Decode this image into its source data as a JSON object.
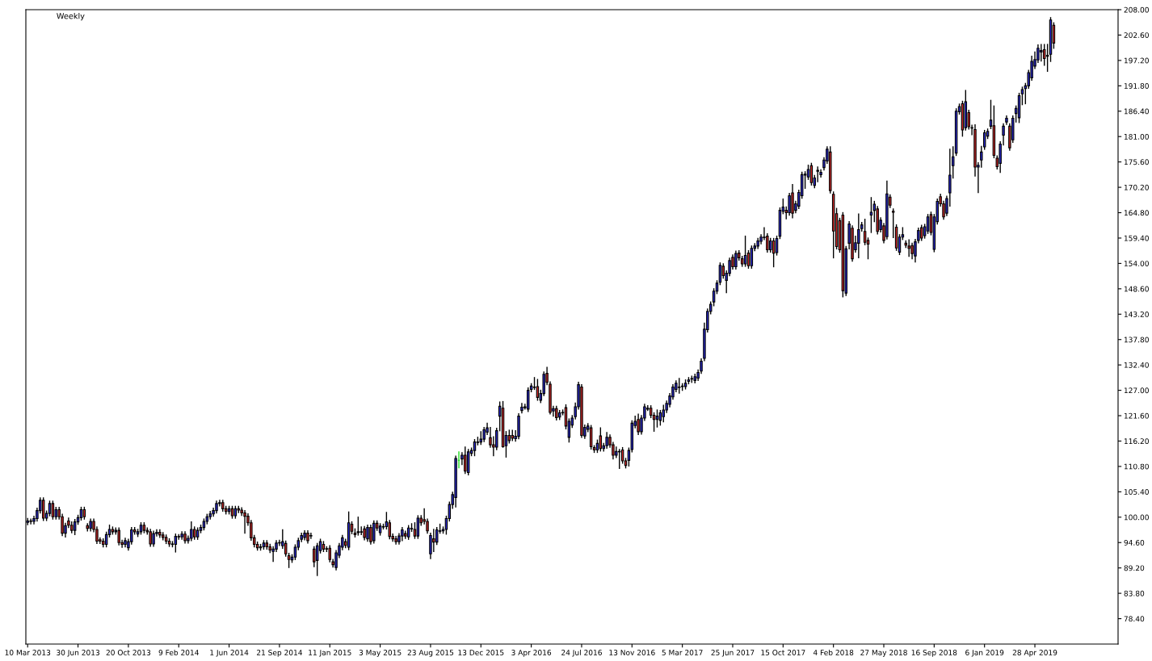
{
  "chart_data": {
    "type": "candlestick",
    "title": "Weekly",
    "x": [
      "2013-03-10",
      "2013-03-17",
      "2013-03-24",
      "2013-03-31",
      "2013-04-07",
      "2013-04-14",
      "2013-04-21",
      "2013-04-28",
      "2013-05-05",
      "2013-05-12",
      "2013-05-19",
      "2013-05-26",
      "2013-06-02",
      "2013-06-09",
      "2013-06-16",
      "2013-06-23",
      "2013-06-30",
      "2013-07-07",
      "2013-07-14",
      "2013-07-21",
      "2013-07-28",
      "2013-08-04",
      "2013-08-11",
      "2013-08-18",
      "2013-08-25",
      "2013-09-01",
      "2013-09-08",
      "2013-09-15",
      "2013-09-22",
      "2013-09-29",
      "2013-10-06",
      "2013-10-13",
      "2013-10-20",
      "2013-10-27",
      "2013-11-03",
      "2013-11-10",
      "2013-11-17",
      "2013-11-24",
      "2013-12-01",
      "2013-12-08",
      "2013-12-15",
      "2013-12-22",
      "2013-12-29",
      "2014-01-05",
      "2014-01-12",
      "2014-01-19",
      "2014-01-26",
      "2014-02-02",
      "2014-02-09",
      "2014-02-16",
      "2014-02-23",
      "2014-03-02",
      "2014-03-09",
      "2014-03-16",
      "2014-03-23",
      "2014-03-30",
      "2014-04-06",
      "2014-04-13",
      "2014-04-20",
      "2014-04-27",
      "2014-05-04",
      "2014-05-11",
      "2014-05-18",
      "2014-05-25",
      "2014-06-01",
      "2014-06-08",
      "2014-06-15",
      "2014-06-22",
      "2014-06-29",
      "2014-07-06",
      "2014-07-13",
      "2014-07-20",
      "2014-07-27",
      "2014-08-03",
      "2014-08-10",
      "2014-08-17",
      "2014-08-24",
      "2014-08-31",
      "2014-09-07",
      "2014-09-14",
      "2014-09-21",
      "2014-09-28",
      "2014-10-05",
      "2014-10-12",
      "2014-10-19",
      "2014-10-26",
      "2014-11-02",
      "2014-11-09",
      "2014-11-16",
      "2014-11-23",
      "2014-11-30",
      "2014-12-07",
      "2014-12-14",
      "2014-12-21",
      "2014-12-28",
      "2015-01-04",
      "2015-01-11",
      "2015-01-18",
      "2015-01-25",
      "2015-02-01",
      "2015-02-08",
      "2015-02-15",
      "2015-02-22",
      "2015-03-01",
      "2015-03-08",
      "2015-03-15",
      "2015-03-22",
      "2015-03-29",
      "2015-04-05",
      "2015-04-12",
      "2015-04-19",
      "2015-04-26",
      "2015-05-03",
      "2015-05-10",
      "2015-05-17",
      "2015-05-24",
      "2015-05-31",
      "2015-06-07",
      "2015-06-14",
      "2015-06-21",
      "2015-06-28",
      "2015-07-05",
      "2015-07-12",
      "2015-07-19",
      "2015-07-26",
      "2015-08-02",
      "2015-08-09",
      "2015-08-16",
      "2015-08-23",
      "2015-08-30",
      "2015-09-06",
      "2015-09-13",
      "2015-09-20",
      "2015-09-27",
      "2015-10-04",
      "2015-10-11",
      "2015-10-18",
      "2015-10-25",
      "2015-11-01",
      "2015-11-08",
      "2015-11-15",
      "2015-11-22",
      "2015-11-29",
      "2015-12-06",
      "2015-12-13",
      "2015-12-20",
      "2015-12-27",
      "2016-01-03",
      "2016-01-10",
      "2016-01-17",
      "2016-01-24",
      "2016-01-31",
      "2016-02-07",
      "2016-02-14",
      "2016-02-21",
      "2016-02-28",
      "2016-03-06",
      "2016-03-13",
      "2016-03-20",
      "2016-03-27",
      "2016-04-03",
      "2016-04-10",
      "2016-04-17",
      "2016-04-24",
      "2016-05-01",
      "2016-05-08",
      "2016-05-15",
      "2016-05-22",
      "2016-05-29",
      "2016-06-05",
      "2016-06-12",
      "2016-06-19",
      "2016-06-26",
      "2016-07-03",
      "2016-07-10",
      "2016-07-17",
      "2016-07-24",
      "2016-07-31",
      "2016-08-07",
      "2016-08-14",
      "2016-08-21",
      "2016-08-28",
      "2016-09-04",
      "2016-09-11",
      "2016-09-18",
      "2016-09-25",
      "2016-10-02",
      "2016-10-09",
      "2016-10-16",
      "2016-10-23",
      "2016-10-30",
      "2016-11-06",
      "2016-11-13",
      "2016-11-20",
      "2016-11-27",
      "2016-12-04",
      "2016-12-11",
      "2016-12-18",
      "2016-12-25",
      "2017-01-01",
      "2017-01-08",
      "2017-01-15",
      "2017-01-22",
      "2017-01-29",
      "2017-02-05",
      "2017-02-12",
      "2017-02-19",
      "2017-02-26",
      "2017-03-05",
      "2017-03-12",
      "2017-03-19",
      "2017-03-26",
      "2017-04-02",
      "2017-04-09",
      "2017-04-16",
      "2017-04-23",
      "2017-04-30",
      "2017-05-07",
      "2017-05-14",
      "2017-05-21",
      "2017-05-28",
      "2017-06-04",
      "2017-06-11",
      "2017-06-18",
      "2017-06-25",
      "2017-07-02",
      "2017-07-09",
      "2017-07-16",
      "2017-07-23",
      "2017-07-30",
      "2017-08-06",
      "2017-08-13",
      "2017-08-20",
      "2017-08-27",
      "2017-09-03",
      "2017-09-10",
      "2017-09-17",
      "2017-09-24",
      "2017-10-01",
      "2017-10-08",
      "2017-10-15",
      "2017-10-22",
      "2017-10-29",
      "2017-11-05",
      "2017-11-12",
      "2017-11-19",
      "2017-11-26",
      "2017-12-03",
      "2017-12-10",
      "2017-12-17",
      "2017-12-24",
      "2017-12-31",
      "2018-01-07",
      "2018-01-14",
      "2018-01-21",
      "2018-01-28",
      "2018-02-04",
      "2018-02-11",
      "2018-02-18",
      "2018-02-25",
      "2018-03-04",
      "2018-03-11",
      "2018-03-18",
      "2018-03-25",
      "2018-04-01",
      "2018-04-08",
      "2018-04-15",
      "2018-04-22",
      "2018-04-29",
      "2018-05-06",
      "2018-05-13",
      "2018-05-20",
      "2018-05-27",
      "2018-06-03",
      "2018-06-10",
      "2018-06-17",
      "2018-06-24",
      "2018-07-01",
      "2018-07-08",
      "2018-07-15",
      "2018-07-22",
      "2018-07-29",
      "2018-08-05",
      "2018-08-12",
      "2018-08-19",
      "2018-08-26",
      "2018-09-02",
      "2018-09-09",
      "2018-09-16",
      "2018-09-23",
      "2018-09-30",
      "2018-10-07",
      "2018-10-14",
      "2018-10-21",
      "2018-10-28",
      "2018-11-04",
      "2018-11-11",
      "2018-11-18",
      "2018-11-25",
      "2018-12-02",
      "2018-12-09",
      "2018-12-16",
      "2018-12-23",
      "2018-12-30",
      "2019-01-06",
      "2019-01-13",
      "2019-01-20",
      "2019-01-27",
      "2019-02-03",
      "2019-02-10",
      "2019-02-17",
      "2019-02-24",
      "2019-03-03",
      "2019-03-10",
      "2019-03-17",
      "2019-03-24",
      "2019-03-31",
      "2019-04-07",
      "2019-04-14",
      "2019-04-21",
      "2019-04-28",
      "2019-05-05",
      "2019-05-12",
      "2019-05-19",
      "2019-05-26",
      "2019-06-02",
      "2019-06-09"
    ],
    "ohlc": [
      [
        98.9,
        99.7,
        98.4,
        99.2
      ],
      [
        99.2,
        99.6,
        98.6,
        99.1
      ],
      [
        99.1,
        100.2,
        98.6,
        99.7
      ],
      [
        99.7,
        101.9,
        99.2,
        101.4
      ],
      [
        101.4,
        104.1,
        100.9,
        103.6
      ],
      [
        103.6,
        104.1,
        99.3,
        99.8
      ],
      [
        99.8,
        101.3,
        99.3,
        100.8
      ],
      [
        100.8,
        103.4,
        100.3,
        102.9
      ],
      [
        102.9,
        103.4,
        99.6,
        100.1
      ],
      [
        100.1,
        102.1,
        99.6,
        101.6
      ],
      [
        101.6,
        102.1,
        99.6,
        100.1
      ],
      [
        100.1,
        100.6,
        96.1,
        96.6
      ],
      [
        96.6,
        98.7,
        95.8,
        98.2
      ],
      [
        99.2,
        99.8,
        97.8,
        98.3
      ],
      [
        98.3,
        99.0,
        96.7,
        97.2
      ],
      [
        97.2,
        99.5,
        96.3,
        99.0
      ],
      [
        99.0,
        100.4,
        98.5,
        99.9
      ],
      [
        99.9,
        102.1,
        99.4,
        101.6
      ],
      [
        101.6,
        102.1,
        99.6,
        100.1
      ],
      [
        98.2,
        98.6,
        97.1,
        97.6
      ],
      [
        97.6,
        99.6,
        97.1,
        99.1
      ],
      [
        99.1,
        99.6,
        96.9,
        97.4
      ],
      [
        97.4,
        97.9,
        94.4,
        94.9
      ],
      [
        95.2,
        95.6,
        94.4,
        94.9
      ],
      [
        94.9,
        95.4,
        93.7,
        94.2
      ],
      [
        94.2,
        96.8,
        93.7,
        96.3
      ],
      [
        96.3,
        98.3,
        95.8,
        97.4
      ],
      [
        97.4,
        97.9,
        96.4,
        96.9
      ],
      [
        96.9,
        97.7,
        96.4,
        97.2
      ],
      [
        97.2,
        97.7,
        94.1,
        94.6
      ],
      [
        94.6,
        95.1,
        93.6,
        94.2
      ],
      [
        94.2,
        95.5,
        93.7,
        95.0
      ],
      [
        93.5,
        95.3,
        93.0,
        94.8
      ],
      [
        94.8,
        97.8,
        94.3,
        97.3
      ],
      [
        97.3,
        97.8,
        96.4,
        96.9
      ],
      [
        96.4,
        97.4,
        95.9,
        96.9
      ],
      [
        96.9,
        98.8,
        96.4,
        98.3
      ],
      [
        98.3,
        98.8,
        96.7,
        97.2
      ],
      [
        97.2,
        97.7,
        96.4,
        96.9
      ],
      [
        96.9,
        97.4,
        93.8,
        94.3
      ],
      [
        94.3,
        97.0,
        93.8,
        96.5
      ],
      [
        96.5,
        97.3,
        96.0,
        96.8
      ],
      [
        96.8,
        97.3,
        95.7,
        96.2
      ],
      [
        96.2,
        96.7,
        95.2,
        95.7
      ],
      [
        95.7,
        96.2,
        94.4,
        94.9
      ],
      [
        94.9,
        95.4,
        93.8,
        94.3
      ],
      [
        94.3,
        94.8,
        93.7,
        94.2
      ],
      [
        94.2,
        96.4,
        92.6,
        95.9
      ],
      [
        95.9,
        96.3,
        95.3,
        95.8
      ],
      [
        95.8,
        96.9,
        95.3,
        96.4
      ],
      [
        96.4,
        96.9,
        94.5,
        95.0
      ],
      [
        95.0,
        96.0,
        94.5,
        95.5
      ],
      [
        95.5,
        99.0,
        95.0,
        97.4
      ],
      [
        97.4,
        97.9,
        95.3,
        95.8
      ],
      [
        95.8,
        97.7,
        95.3,
        97.2
      ],
      [
        97.2,
        98.3,
        96.7,
        97.8
      ],
      [
        97.8,
        99.6,
        97.3,
        99.1
      ],
      [
        99.1,
        100.6,
        98.6,
        100.1
      ],
      [
        100.1,
        101.2,
        99.6,
        100.7
      ],
      [
        100.7,
        101.9,
        100.2,
        101.4
      ],
      [
        101.4,
        103.4,
        100.9,
        102.9
      ],
      [
        102.9,
        103.6,
        102.4,
        103.1
      ],
      [
        103.1,
        103.6,
        101.3,
        101.8
      ],
      [
        101.8,
        102.3,
        100.7,
        101.2
      ],
      [
        101.2,
        102.3,
        100.7,
        101.8
      ],
      [
        101.8,
        102.3,
        99.8,
        100.3
      ],
      [
        100.3,
        102.3,
        99.8,
        101.8
      ],
      [
        101.8,
        102.3,
        101.0,
        101.5
      ],
      [
        101.5,
        102.0,
        100.4,
        100.9
      ],
      [
        100.9,
        101.4,
        96.6,
        100.2
      ],
      [
        100.2,
        100.7,
        98.3,
        98.8
      ],
      [
        98.8,
        99.3,
        95.1,
        95.6
      ],
      [
        95.6,
        96.1,
        93.7,
        94.2
      ],
      [
        94.2,
        94.7,
        93.0,
        93.5
      ],
      [
        93.5,
        94.2,
        93.0,
        93.7
      ],
      [
        93.7,
        95.0,
        93.2,
        94.5
      ],
      [
        94.5,
        95.0,
        93.2,
        93.7
      ],
      [
        93.7,
        94.2,
        92.5,
        93.0
      ],
      [
        92.7,
        93.7,
        90.6,
        93.2
      ],
      [
        93.2,
        95.0,
        92.7,
        94.5
      ],
      [
        94.5,
        95.1,
        94.0,
        94.6
      ],
      [
        93.9,
        97.3,
        93.4,
        94.8
      ],
      [
        94.4,
        94.9,
        91.7,
        92.2
      ],
      [
        91.8,
        92.3,
        89.3,
        91.0
      ],
      [
        90.9,
        92.0,
        90.4,
        91.5
      ],
      [
        91.5,
        94.1,
        91.0,
        93.6
      ],
      [
        93.6,
        95.5,
        93.1,
        95.0
      ],
      [
        95.3,
        96.6,
        94.8,
        96.1
      ],
      [
        95.7,
        97.1,
        95.2,
        96.6
      ],
      [
        96.6,
        97.1,
        94.5,
        95.0
      ],
      [
        96.0,
        96.6,
        95.5,
        96.1
      ],
      [
        93.2,
        93.7,
        89.5,
        90.5
      ],
      [
        90.8,
        94.4,
        87.6,
        93.9
      ],
      [
        92.9,
        95.3,
        92.4,
        94.8
      ],
      [
        94.2,
        94.8,
        92.7,
        93.2
      ],
      [
        93.3,
        93.7,
        92.7,
        93.2
      ],
      [
        93.4,
        93.9,
        90.5,
        91.0
      ],
      [
        90.5,
        91.0,
        89.4,
        89.9
      ],
      [
        89.3,
        92.9,
        88.8,
        92.4
      ],
      [
        91.9,
        94.4,
        91.4,
        93.9
      ],
      [
        93.6,
        96.1,
        93.1,
        95.6
      ],
      [
        94.8,
        95.3,
        93.5,
        94.0
      ],
      [
        93.6,
        101.1,
        93.1,
        98.8
      ],
      [
        98.5,
        99.0,
        96.5,
        97.0
      ],
      [
        96.6,
        97.5,
        95.8,
        96.3
      ],
      [
        96.7,
        100.0,
        96.2,
        96.9
      ],
      [
        96.8,
        97.9,
        96.3,
        96.9
      ],
      [
        97.5,
        98.0,
        95.2,
        95.7
      ],
      [
        95.4,
        98.3,
        94.9,
        97.8
      ],
      [
        97.8,
        98.3,
        94.3,
        94.8
      ],
      [
        95.0,
        99.2,
        94.5,
        98.7
      ],
      [
        98.7,
        99.2,
        97.2,
        97.7
      ],
      [
        96.7,
        98.6,
        96.2,
        98.1
      ],
      [
        97.9,
        98.5,
        97.5,
        98.0
      ],
      [
        98.0,
        101.0,
        97.5,
        99.0
      ],
      [
        98.8,
        99.3,
        95.4,
        95.9
      ],
      [
        95.9,
        96.4,
        94.9,
        95.4
      ],
      [
        95.4,
        95.9,
        94.3,
        94.8
      ],
      [
        94.8,
        96.5,
        94.3,
        96.0
      ],
      [
        96.0,
        97.8,
        95.0,
        97.3
      ],
      [
        96.5,
        97.0,
        95.5,
        96.0
      ],
      [
        95.8,
        98.2,
        95.3,
        97.7
      ],
      [
        97.5,
        98.6,
        97.0,
        97.6
      ],
      [
        97.4,
        98.8,
        95.5,
        96.0
      ],
      [
        96.0,
        100.3,
        95.5,
        99.8
      ],
      [
        99.8,
        100.3,
        98.3,
        98.8
      ],
      [
        99.5,
        101.8,
        98.6,
        99.1
      ],
      [
        99.1,
        99.6,
        96.6,
        97.1
      ],
      [
        92.2,
        96.6,
        91.2,
        96.1
      ],
      [
        95.4,
        97.4,
        92.7,
        94.7
      ],
      [
        94.7,
        97.8,
        94.2,
        97.3
      ],
      [
        97.0,
        98.5,
        96.6,
        97.1
      ],
      [
        97.1,
        97.9,
        96.6,
        97.4
      ],
      [
        97.4,
        100.2,
        96.4,
        99.7
      ],
      [
        99.7,
        103.2,
        99.2,
        102.7
      ],
      [
        102.7,
        105.3,
        101.9,
        104.8
      ],
      [
        104.2,
        113.0,
        102.2,
        112.5
      ],
      [
        112.1,
        113.9,
        110.5,
        112.1
      ],
      [
        112.4,
        113.7,
        111.2,
        113.2
      ],
      [
        113.2,
        114.9,
        109.3,
        109.8
      ],
      [
        109.5,
        114.4,
        109.0,
        113.9
      ],
      [
        113.6,
        114.7,
        113.1,
        114.2
      ],
      [
        114.2,
        116.5,
        113.1,
        116.0
      ],
      [
        115.9,
        117.0,
        115.4,
        116.0
      ],
      [
        116.0,
        118.2,
        115.5,
        116.6
      ],
      [
        116.6,
        119.1,
        116.1,
        118.6
      ],
      [
        118.1,
        120.0,
        117.6,
        119.0
      ],
      [
        116.9,
        119.1,
        114.9,
        115.4
      ],
      [
        115.4,
        117.1,
        113.1,
        114.9
      ],
      [
        114.9,
        118.9,
        114.4,
        118.4
      ],
      [
        121.5,
        124.5,
        118.4,
        123.6
      ],
      [
        123.2,
        124.6,
        114.9,
        115.0
      ],
      [
        115.2,
        118.2,
        112.8,
        117.4
      ],
      [
        117.4,
        118.5,
        115.8,
        116.3
      ],
      [
        117.4,
        118.5,
        116.3,
        116.8
      ],
      [
        116.7,
        118.4,
        116.2,
        117.2
      ],
      [
        117.2,
        122.0,
        116.7,
        121.5
      ],
      [
        122.7,
        124.2,
        122.2,
        123.4
      ],
      [
        123.3,
        124.0,
        123.0,
        123.5
      ],
      [
        123.0,
        127.5,
        122.5,
        127.0
      ],
      [
        127.2,
        128.4,
        126.7,
        127.9
      ],
      [
        127.6,
        129.7,
        127.2,
        127.7
      ],
      [
        127.8,
        129.3,
        124.9,
        125.5
      ],
      [
        124.9,
        127.0,
        124.4,
        126.3
      ],
      [
        126.3,
        130.9,
        125.9,
        130.4
      ],
      [
        130.6,
        131.9,
        128.2,
        128.7
      ],
      [
        128.3,
        128.8,
        122.0,
        122.3
      ],
      [
        122.6,
        123.6,
        121.5,
        123.1
      ],
      [
        123.1,
        123.6,
        120.7,
        121.2
      ],
      [
        121.3,
        122.7,
        120.8,
        122.2
      ],
      [
        122.2,
        122.8,
        121.8,
        122.3
      ],
      [
        123.3,
        123.9,
        118.8,
        119.4
      ],
      [
        117.0,
        120.9,
        116.0,
        120.4
      ],
      [
        119.6,
        121.6,
        119.1,
        121.1
      ],
      [
        121.4,
        124.3,
        120.9,
        123.5
      ],
      [
        123.5,
        128.7,
        123.0,
        128.2
      ],
      [
        127.7,
        128.2,
        117.0,
        117.4
      ],
      [
        117.3,
        119.6,
        116.8,
        119.1
      ],
      [
        118.7,
        119.9,
        118.2,
        119.4
      ],
      [
        119.0,
        119.5,
        114.5,
        115.0
      ],
      [
        114.8,
        115.2,
        113.8,
        114.3
      ],
      [
        114.3,
        116.4,
        113.8,
        115.7
      ],
      [
        117.3,
        119.0,
        114.1,
        114.6
      ],
      [
        114.6,
        115.7,
        114.1,
        115.2
      ],
      [
        115.2,
        118.0,
        114.7,
        117.0
      ],
      [
        117.0,
        117.5,
        114.9,
        115.4
      ],
      [
        115.4,
        115.9,
        112.4,
        113.2
      ],
      [
        113.2,
        114.9,
        112.7,
        114.0
      ],
      [
        114.0,
        114.4,
        110.4,
        113.9
      ],
      [
        114.3,
        114.8,
        111.5,
        112.0
      ],
      [
        112.0,
        112.5,
        110.5,
        111.0
      ],
      [
        112.1,
        114.7,
        110.9,
        114.2
      ],
      [
        114.4,
        120.5,
        113.9,
        120.0
      ],
      [
        119.5,
        121.5,
        119.0,
        120.4
      ],
      [
        120.8,
        121.9,
        117.6,
        118.2
      ],
      [
        118.2,
        121.6,
        117.7,
        121.1
      ],
      [
        121.1,
        124.0,
        120.6,
        123.5
      ],
      [
        123.0,
        123.7,
        122.7,
        123.2
      ],
      [
        123.2,
        123.7,
        121.2,
        121.7
      ],
      [
        121.7,
        122.2,
        118.3,
        120.8
      ],
      [
        120.8,
        122.8,
        119.2,
        121.5
      ],
      [
        120.6,
        122.7,
        119.6,
        122.2
      ],
      [
        121.4,
        123.8,
        120.3,
        122.8
      ],
      [
        122.8,
        124.7,
        122.3,
        124.2
      ],
      [
        124.0,
        126.3,
        123.5,
        125.8
      ],
      [
        125.6,
        128.2,
        125.1,
        127.7
      ],
      [
        127.2,
        129.0,
        126.7,
        128.5
      ],
      [
        127.7,
        129.5,
        126.4,
        127.6
      ],
      [
        127.8,
        128.4,
        127.0,
        127.9
      ],
      [
        127.8,
        129.2,
        127.3,
        128.5
      ],
      [
        128.9,
        129.7,
        128.4,
        129.2
      ],
      [
        129.4,
        130.0,
        128.7,
        129.5
      ],
      [
        129.1,
        130.4,
        128.6,
        129.9
      ],
      [
        129.6,
        131.3,
        129.1,
        130.8
      ],
      [
        131.1,
        133.7,
        130.6,
        133.2
      ],
      [
        133.8,
        141.3,
        133.3,
        140.0
      ],
      [
        139.9,
        144.3,
        139.4,
        143.8
      ],
      [
        143.8,
        145.8,
        143.3,
        145.3
      ],
      [
        145.8,
        148.6,
        145.0,
        148.1
      ],
      [
        148.1,
        150.3,
        147.6,
        149.8
      ],
      [
        150.0,
        154.1,
        149.5,
        153.6
      ],
      [
        153.4,
        153.9,
        150.9,
        151.4
      ],
      [
        150.4,
        152.4,
        147.8,
        151.9
      ],
      [
        151.9,
        155.1,
        151.4,
        154.6
      ],
      [
        155.3,
        155.8,
        152.8,
        153.3
      ],
      [
        153.3,
        156.6,
        152.8,
        156.1
      ],
      [
        156.2,
        156.7,
        154.7,
        155.2
      ],
      [
        155.0,
        155.5,
        153.4,
        153.9
      ],
      [
        153.9,
        159.8,
        153.4,
        155.7
      ],
      [
        156.2,
        156.7,
        153.0,
        153.5
      ],
      [
        153.5,
        157.7,
        153.0,
        157.2
      ],
      [
        157.2,
        158.2,
        156.7,
        157.7
      ],
      [
        157.7,
        159.3,
        157.2,
        158.8
      ],
      [
        158.7,
        160.1,
        158.2,
        159.6
      ],
      [
        159.5,
        161.6,
        159.1,
        159.6
      ],
      [
        159.8,
        160.3,
        156.4,
        156.9
      ],
      [
        156.9,
        159.3,
        156.4,
        158.8
      ],
      [
        158.8,
        159.3,
        153.3,
        156.2
      ],
      [
        156.3,
        159.8,
        155.8,
        159.3
      ],
      [
        159.8,
        165.8,
        159.3,
        165.3
      ],
      [
        165.1,
        167.7,
        164.6,
        166.0
      ],
      [
        165.3,
        166.0,
        163.5,
        164.8
      ],
      [
        164.8,
        168.9,
        164.3,
        168.4
      ],
      [
        169.0,
        170.8,
        163.7,
        164.7
      ],
      [
        165.3,
        167.2,
        164.8,
        166.7
      ],
      [
        166.2,
        169.6,
        165.7,
        169.1
      ],
      [
        168.4,
        173.4,
        167.9,
        172.9
      ],
      [
        172.8,
        173.5,
        170.0,
        173.0
      ],
      [
        172.4,
        174.9,
        171.9,
        174.0
      ],
      [
        174.8,
        175.3,
        170.7,
        171.2
      ],
      [
        170.6,
        172.7,
        170.1,
        172.2
      ],
      [
        173.6,
        174.5,
        171.4,
        173.8
      ],
      [
        172.9,
        173.9,
        172.4,
        173.4
      ],
      [
        174.4,
        176.5,
        173.9,
        176.0
      ],
      [
        175.8,
        178.8,
        175.3,
        178.3
      ],
      [
        177.7,
        178.8,
        169.0,
        169.5
      ],
      [
        168.7,
        169.2,
        155.2,
        160.9
      ],
      [
        164.6,
        165.7,
        157.1,
        157.6
      ],
      [
        163.1,
        163.6,
        156.4,
        156.9
      ],
      [
        164.3,
        164.8,
        146.9,
        148.2
      ],
      [
        147.7,
        157.6,
        147.2,
        157.1
      ],
      [
        158.3,
        162.9,
        157.1,
        162.4
      ],
      [
        161.5,
        162.0,
        154.5,
        155.0
      ],
      [
        156.9,
        159.8,
        156.4,
        158.4
      ],
      [
        158.3,
        164.5,
        155.2,
        161.2
      ],
      [
        161.4,
        162.7,
        160.9,
        162.2
      ],
      [
        160.8,
        163.4,
        158.0,
        158.5
      ],
      [
        158.9,
        159.4,
        155.0,
        158.1
      ],
      [
        164.3,
        168.0,
        160.6,
        164.9
      ],
      [
        165.3,
        167.2,
        162.9,
        166.6
      ],
      [
        165.6,
        166.1,
        160.3,
        160.8
      ],
      [
        161.2,
        163.7,
        160.7,
        163.2
      ],
      [
        162.0,
        162.5,
        158.4,
        158.9
      ],
      [
        159.7,
        171.5,
        159.2,
        168.8
      ],
      [
        168.1,
        168.6,
        165.9,
        166.4
      ],
      [
        165.1,
        165.6,
        159.5,
        164.9
      ],
      [
        161.7,
        162.2,
        156.8,
        157.3
      ],
      [
        156.4,
        160.1,
        155.9,
        159.6
      ],
      [
        159.6,
        161.6,
        159.1,
        160.1
      ],
      [
        158.3,
        158.8,
        157.4,
        157.9
      ],
      [
        157.7,
        159.0,
        155.5,
        157.2
      ],
      [
        157.8,
        158.3,
        155.0,
        156.1
      ],
      [
        155.6,
        159.1,
        154.3,
        158.6
      ],
      [
        158.9,
        161.5,
        158.4,
        161.0
      ],
      [
        161.6,
        162.1,
        158.9,
        159.4
      ],
      [
        159.9,
        162.3,
        159.4,
        161.8
      ],
      [
        160.9,
        164.4,
        160.4,
        163.9
      ],
      [
        164.4,
        164.9,
        160.1,
        160.6
      ],
      [
        157.0,
        164.4,
        156.5,
        163.9
      ],
      [
        162.9,
        167.7,
        162.4,
        167.2
      ],
      [
        168.2,
        168.7,
        166.2,
        166.7
      ],
      [
        166.7,
        167.2,
        163.4,
        163.9
      ],
      [
        164.7,
        168.3,
        164.2,
        167.8
      ],
      [
        169.0,
        178.3,
        166.2,
        172.8
      ],
      [
        174.8,
        178.8,
        172.2,
        176.7
      ],
      [
        177.5,
        186.9,
        177.0,
        186.4
      ],
      [
        186.3,
        187.9,
        185.8,
        187.4
      ],
      [
        188.0,
        188.5,
        181.1,
        182.4
      ],
      [
        182.9,
        190.8,
        182.4,
        188.4
      ],
      [
        186.1,
        186.6,
        182.6,
        183.1
      ],
      [
        182.8,
        183.4,
        181.4,
        182.9
      ],
      [
        182.5,
        183.5,
        172.6,
        174.5
      ],
      [
        174.5,
        175.4,
        169.1,
        174.9
      ],
      [
        176.0,
        178.9,
        174.5,
        177.7
      ],
      [
        178.8,
        182.3,
        178.3,
        181.8
      ],
      [
        181.1,
        182.6,
        180.6,
        182.1
      ],
      [
        183.2,
        188.7,
        182.7,
        184.5
      ],
      [
        183.3,
        187.5,
        176.5,
        177.0
      ],
      [
        176.4,
        176.9,
        174.1,
        174.6
      ],
      [
        175.3,
        179.9,
        173.4,
        179.4
      ],
      [
        181.3,
        183.7,
        179.2,
        183.2
      ],
      [
        184.1,
        185.4,
        183.6,
        184.9
      ],
      [
        183.2,
        183.7,
        178.1,
        178.6
      ],
      [
        180.3,
        185.4,
        179.8,
        184.9
      ],
      [
        185.9,
        187.5,
        184.1,
        187.0
      ],
      [
        185.0,
        190.2,
        184.0,
        189.7
      ],
      [
        190.1,
        191.5,
        187.8,
        191.0
      ],
      [
        191.2,
        192.3,
        188.0,
        191.8
      ],
      [
        191.8,
        195.1,
        191.3,
        194.6
      ],
      [
        193.5,
        198.1,
        193.0,
        197.0
      ],
      [
        196.0,
        199.0,
        195.5,
        197.4
      ],
      [
        197.3,
        200.5,
        196.8,
        199.8
      ],
      [
        199.0,
        200.6,
        197.1,
        199.3
      ],
      [
        199.5,
        200.6,
        196.2,
        197.6
      ],
      [
        198.1,
        200.6,
        194.9,
        198.3
      ],
      [
        198.5,
        206.3,
        197.0,
        205.8
      ],
      [
        204.7,
        205.2,
        199.8,
        200.9
      ]
    ],
    "xlim": [
      "2013-03-06",
      "2019-10-30"
    ],
    "xticks": [
      {
        "value": "2013-03-10",
        "label": "10 Mar 2013"
      },
      {
        "value": "2013-06-30",
        "label": "30 Jun 2013"
      },
      {
        "value": "2013-10-20",
        "label": "20 Oct 2013"
      },
      {
        "value": "2014-02-09",
        "label": "9 Feb 2014"
      },
      {
        "value": "2014-06-01",
        "label": "1 Jun 2014"
      },
      {
        "value": "2014-09-21",
        "label": "21 Sep 2014"
      },
      {
        "value": "2015-01-11",
        "label": "11 Jan 2015"
      },
      {
        "value": "2015-05-03",
        "label": "3 May 2015"
      },
      {
        "value": "2015-08-23",
        "label": "23 Aug 2015"
      },
      {
        "value": "2015-12-13",
        "label": "13 Dec 2015"
      },
      {
        "value": "2016-04-03",
        "label": "3 Apr 2016"
      },
      {
        "value": "2016-07-24",
        "label": "24 Jul 2016"
      },
      {
        "value": "2016-11-13",
        "label": "13 Nov 2016"
      },
      {
        "value": "2017-03-05",
        "label": "5 Mar 2017"
      },
      {
        "value": "2017-06-25",
        "label": "25 Jun 2017"
      },
      {
        "value": "2017-10-15",
        "label": "15 Oct 2017"
      },
      {
        "value": "2018-02-04",
        "label": "4 Feb 2018"
      },
      {
        "value": "2018-05-27",
        "label": "27 May 2018"
      },
      {
        "value": "2018-09-16",
        "label": "16 Sep 2018"
      },
      {
        "value": "2019-01-06",
        "label": "6 Jan 2019"
      },
      {
        "value": "2019-04-28",
        "label": "28 Apr 2019"
      }
    ],
    "ylim": [
      73.0,
      208.0
    ],
    "yticks": [
      {
        "value": 78.4,
        "label": "78.40"
      },
      {
        "value": 83.8,
        "label": "83.80"
      },
      {
        "value": 89.2,
        "label": "89.20"
      },
      {
        "value": 94.6,
        "label": "94.60"
      },
      {
        "value": 100.0,
        "label": "100.00"
      },
      {
        "value": 105.4,
        "label": "105.40"
      },
      {
        "value": 110.8,
        "label": "110.80"
      },
      {
        "value": 116.2,
        "label": "116.20"
      },
      {
        "value": 121.6,
        "label": "121.60"
      },
      {
        "value": 127.0,
        "label": "127.00"
      },
      {
        "value": 132.4,
        "label": "132.40"
      },
      {
        "value": 137.8,
        "label": "137.80"
      },
      {
        "value": 143.2,
        "label": "143.20"
      },
      {
        "value": 148.6,
        "label": "148.60"
      },
      {
        "value": 154.0,
        "label": "154.00"
      },
      {
        "value": 159.4,
        "label": "159.40"
      },
      {
        "value": 164.8,
        "label": "164.80"
      },
      {
        "value": 170.2,
        "label": "170.20"
      },
      {
        "value": 175.6,
        "label": "175.60"
      },
      {
        "value": 181.0,
        "label": "181.00"
      },
      {
        "value": 186.4,
        "label": "186.40"
      },
      {
        "value": 191.8,
        "label": "191.80"
      },
      {
        "value": 197.2,
        "label": "197.20"
      },
      {
        "value": 202.6,
        "label": "202.60"
      },
      {
        "value": 208.0,
        "label": "208.00"
      }
    ],
    "grid": false
  }
}
